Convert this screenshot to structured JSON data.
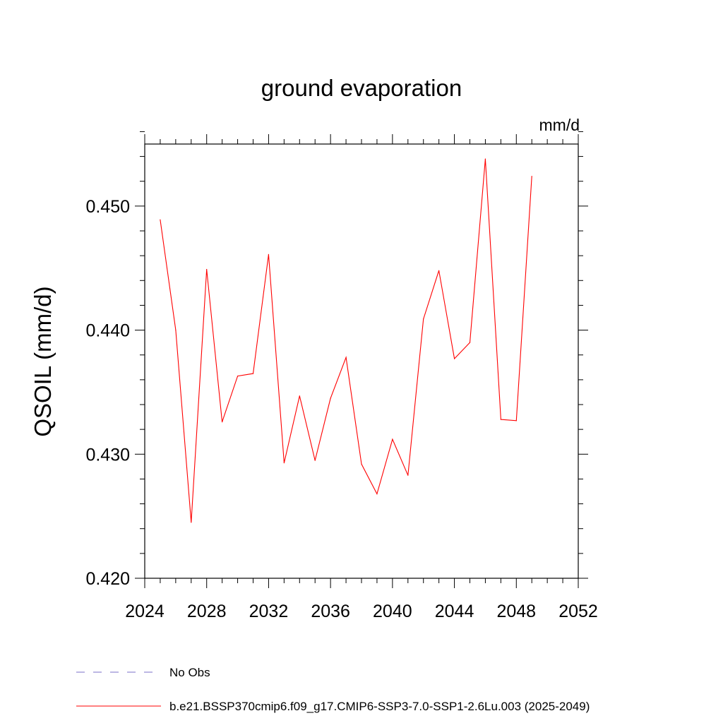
{
  "chart_data": {
    "type": "line",
    "title": "ground evaporation",
    "units_label": "mm/d",
    "ylabel": "QSOIL  (mm/d)",
    "xlabel": "",
    "xlim": [
      2024,
      2052
    ],
    "ylim": [
      0.42,
      0.455
    ],
    "x_ticks": [
      2024,
      2028,
      2032,
      2036,
      2040,
      2044,
      2048,
      2052
    ],
    "x_tick_labels": [
      "2024",
      "2028",
      "2032",
      "2036",
      "2040",
      "2044",
      "2048",
      "2052"
    ],
    "y_ticks": [
      0.42,
      0.43,
      0.44,
      0.45
    ],
    "y_tick_labels": [
      "0.420",
      "0.430",
      "0.440",
      "0.450"
    ],
    "y_minor_step": 0.002,
    "x_minor_step": 1,
    "grid": false,
    "series": [
      {
        "name": "b.e21.BSSP370cmip6.f09_g17.CMIP6-SSP3-7.0-SSP1-2.6Lu.003 (2025-2049)",
        "color": "#ff0000",
        "x": [
          2025,
          2026,
          2027,
          2028,
          2029,
          2030,
          2031,
          2032,
          2033,
          2034,
          2035,
          2036,
          2037,
          2038,
          2039,
          2040,
          2041,
          2042,
          2043,
          2044,
          2045,
          2046,
          2047,
          2048,
          2049
        ],
        "values": [
          0.4489,
          0.44,
          0.4245,
          0.4449,
          0.4326,
          0.4363,
          0.4365,
          0.4461,
          0.4293,
          0.4347,
          0.4295,
          0.4345,
          0.4378,
          0.4292,
          0.4268,
          0.4312,
          0.4283,
          0.4409,
          0.4448,
          0.4377,
          0.439,
          0.4538,
          0.4328,
          0.4327,
          0.4524
        ]
      }
    ],
    "legend": {
      "placement": "bottom",
      "entries": [
        {
          "label": "No Obs",
          "style": "dashed",
          "color": "#7b6fc8"
        },
        {
          "label": "b.e21.BSSP370cmip6.f09_g17.CMIP6-SSP3-7.0-SSP1-2.6Lu.003 (2025-2049)",
          "style": "solid",
          "color": "#ff0000"
        }
      ]
    }
  }
}
